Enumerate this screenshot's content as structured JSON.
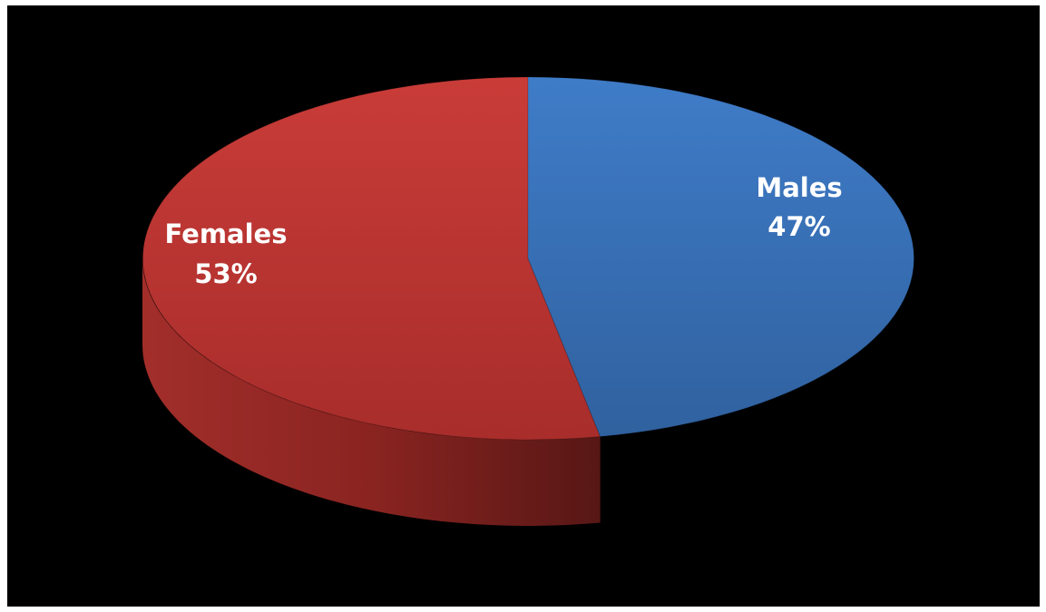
{
  "chart_data": {
    "type": "pie",
    "title": "",
    "categories": [
      "Females",
      "Males"
    ],
    "values": [
      53,
      47
    ],
    "colors": [
      "#b8322f",
      "#3468b0"
    ],
    "labels": [
      {
        "name": "Females",
        "percent": "53%"
      },
      {
        "name": "Males",
        "percent": "47%"
      }
    ],
    "style": "3d",
    "legend": "none"
  }
}
